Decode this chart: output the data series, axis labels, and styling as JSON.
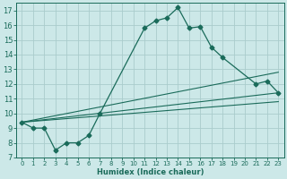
{
  "title": "",
  "xlabel": "Humidex (Indice chaleur)",
  "ylabel": "",
  "bg_color": "#cce8e8",
  "grid_color": "#aacccc",
  "line_color": "#1a6b5a",
  "xlim": [
    -0.5,
    23.5
  ],
  "ylim": [
    7,
    17.5
  ],
  "xticks": [
    0,
    1,
    2,
    3,
    4,
    5,
    6,
    7,
    8,
    9,
    10,
    11,
    12,
    13,
    14,
    15,
    16,
    17,
    18,
    19,
    20,
    21,
    22,
    23
  ],
  "yticks": [
    7,
    8,
    9,
    10,
    11,
    12,
    13,
    14,
    15,
    16,
    17
  ],
  "series": [
    {
      "x": [
        0,
        1,
        2,
        3,
        4,
        5,
        6,
        7,
        11,
        12,
        13,
        14,
        15,
        16,
        17,
        18,
        21,
        22,
        23
      ],
      "y": [
        9.4,
        9.0,
        9.0,
        7.5,
        8.0,
        8.0,
        8.5,
        10.0,
        15.8,
        16.3,
        16.5,
        17.2,
        15.8,
        15.9,
        14.5,
        13.8,
        12.0,
        12.2,
        11.4
      ],
      "marker": "D",
      "markersize": 2.5
    },
    {
      "x": [
        0,
        23
      ],
      "y": [
        9.4,
        11.4
      ],
      "marker": null
    },
    {
      "x": [
        0,
        23
      ],
      "y": [
        9.4,
        10.8
      ],
      "marker": null
    },
    {
      "x": [
        0,
        23
      ],
      "y": [
        9.4,
        12.8
      ],
      "marker": null
    }
  ]
}
